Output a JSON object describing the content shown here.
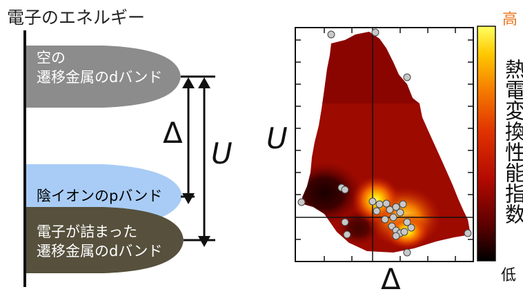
{
  "energy_diagram": {
    "title": "電子のエネルギー",
    "bands": [
      {
        "label_line1": "空の",
        "label_line2": "遷移金属のdバンド",
        "color": "#8c8c8c"
      },
      {
        "label_line1": "陰イオンのpバンド",
        "label_line2": "",
        "color": "#a8ccf5"
      },
      {
        "label_line1": "電子が詰まった",
        "label_line2": "遷移金属のdバンド",
        "color": "#56503c"
      }
    ],
    "delta_symbol": "Δ",
    "u_symbol": "U"
  },
  "heatmap": {
    "y_axis_symbol": "U",
    "x_axis_symbol": "Δ",
    "colorbar": {
      "high_label": "高",
      "low_label": "低",
      "title": "熱電変換性能指数",
      "colors": [
        "#000000",
        "#5a0000",
        "#b40a00",
        "#e03200",
        "#f57800",
        "#ffc800",
        "#ffff60"
      ]
    }
  }
}
